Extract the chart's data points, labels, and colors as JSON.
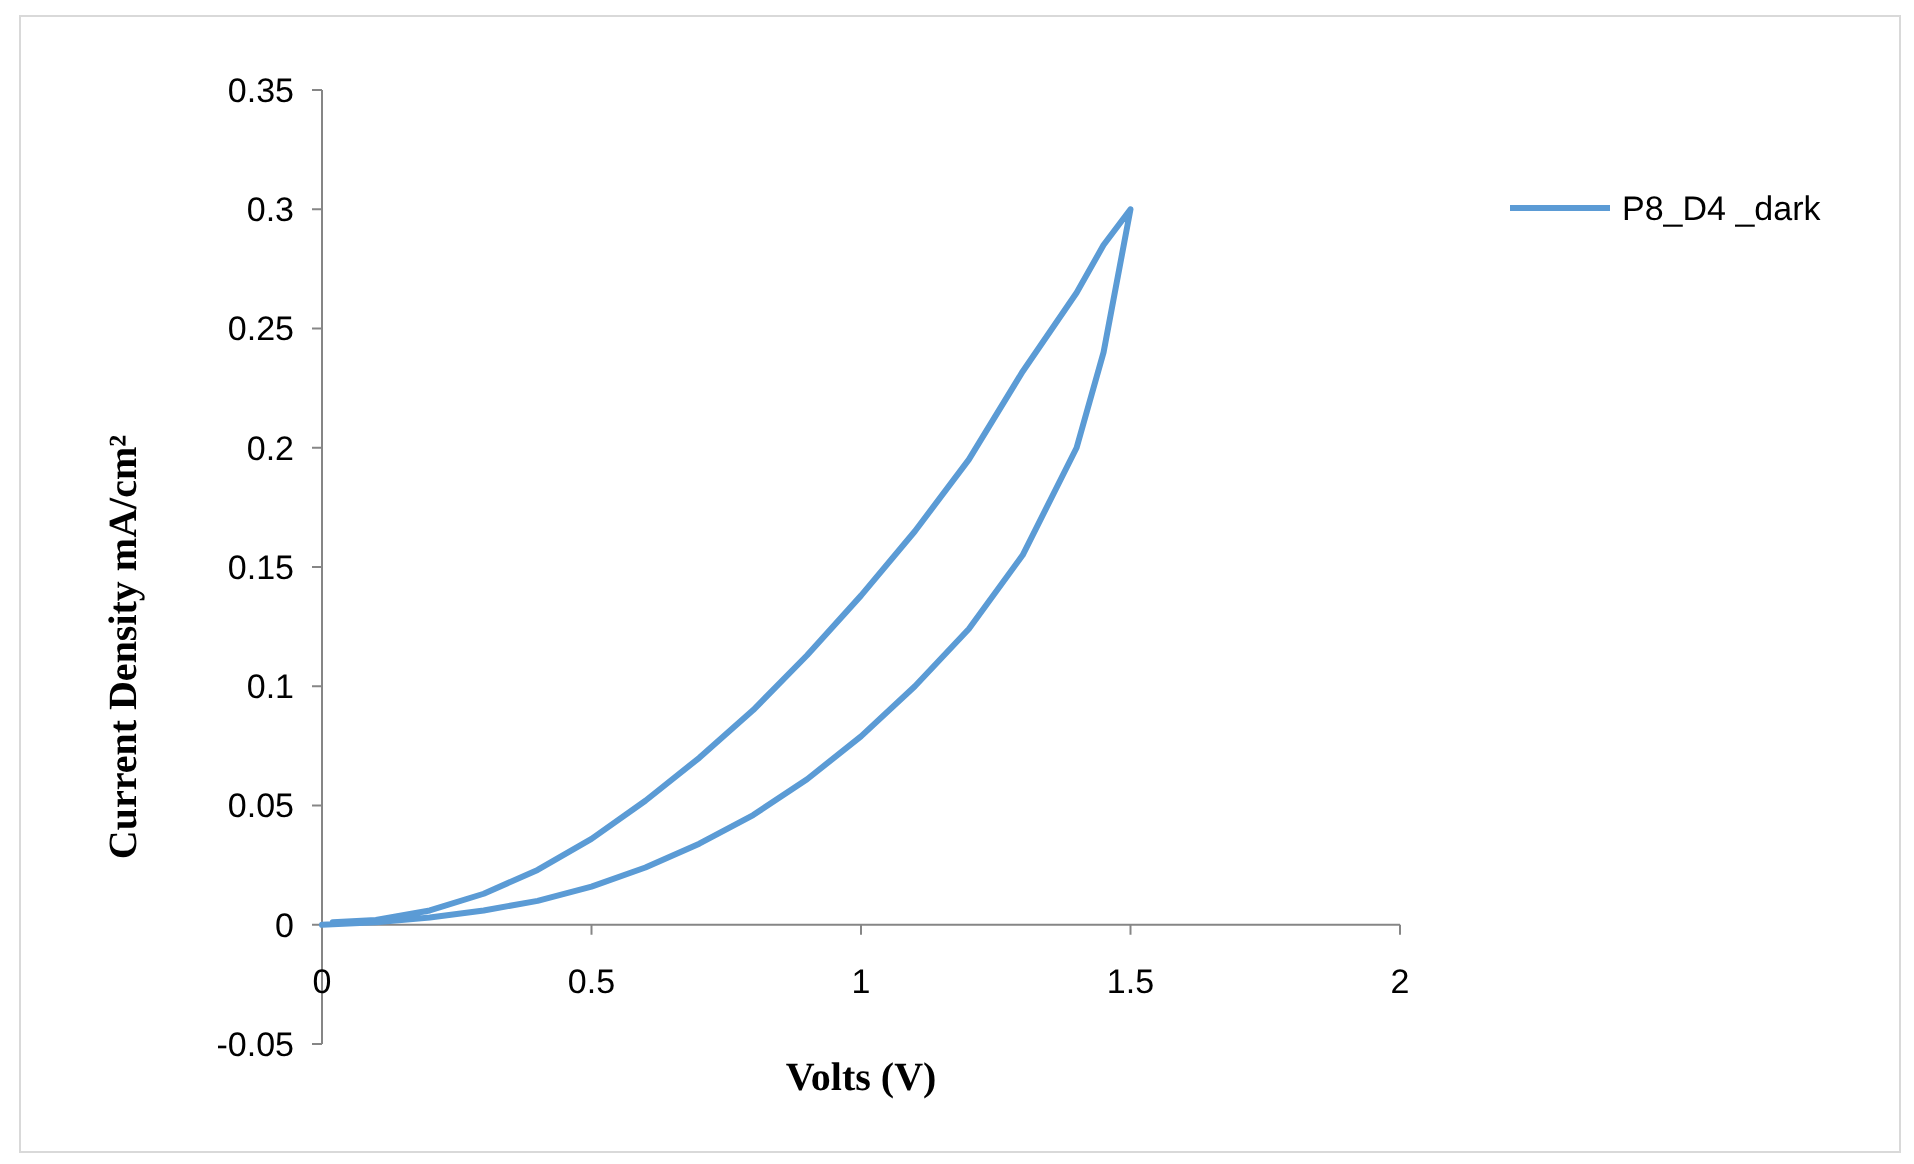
{
  "chart_data": {
    "type": "line",
    "xlabel": "Volts (V)",
    "ylabel": "Current Density mA/cm²",
    "xlim": [
      0,
      2
    ],
    "xticks": [
      0,
      0.5,
      1,
      1.5,
      2
    ],
    "ylim": [
      -0.05,
      0.35
    ],
    "yticks": [
      -0.05,
      0,
      0.05,
      0.1,
      0.15,
      0.2,
      0.25,
      0.3,
      0.35
    ],
    "grid": false,
    "legend": "right",
    "marker": "none",
    "line_style": "solid",
    "series": [
      {
        "name": "P8_D4 _dark",
        "color": "#5b9bd5",
        "x": [
          0,
          0.1,
          0.2,
          0.3,
          0.4,
          0.5,
          0.6,
          0.7,
          0.8,
          0.9,
          1.0,
          1.1,
          1.2,
          1.3,
          1.4,
          1.45,
          1.5,
          1.45,
          1.4,
          1.3,
          1.2,
          1.1,
          1.0,
          0.9,
          0.8,
          0.7,
          0.6,
          0.5,
          0.4,
          0.3,
          0.2,
          0.1,
          0.02
        ],
        "values": [
          0,
          0.001,
          0.003,
          0.006,
          0.01,
          0.016,
          0.024,
          0.034,
          0.046,
          0.061,
          0.079,
          0.1,
          0.124,
          0.155,
          0.2,
          0.24,
          0.3,
          0.285,
          0.265,
          0.232,
          0.195,
          0.165,
          0.138,
          0.113,
          0.09,
          0.07,
          0.052,
          0.036,
          0.023,
          0.013,
          0.006,
          0.002,
          0.001
        ]
      }
    ]
  }
}
